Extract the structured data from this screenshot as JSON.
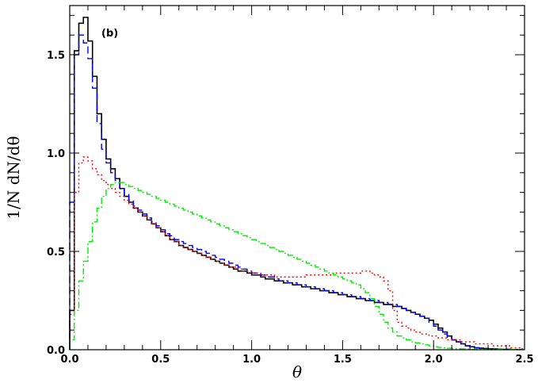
{
  "chart_data": {
    "type": "line",
    "title": "",
    "panel_label": "(b)",
    "xlabel": "θ",
    "ylabel": "1/N dN/dθ",
    "xlim": [
      0,
      2.5
    ],
    "ylim": [
      0,
      1.75
    ],
    "x_ticks": [
      "0.0",
      "0.5",
      "1.0",
      "1.5",
      "2.0",
      "2.5"
    ],
    "y_ticks": [
      "0.0",
      "0.5",
      "1.0",
      "1.5"
    ],
    "grid": false,
    "legend": "none",
    "step": 0.025,
    "series": [
      {
        "color": "#000000",
        "style": "solid",
        "values": [
          0.2,
          1.52,
          1.66,
          1.69,
          1.57,
          1.39,
          1.2,
          1.07,
          0.97,
          0.92,
          0.87,
          0.82,
          0.78,
          0.75,
          0.72,
          0.7,
          0.68,
          0.66,
          0.64,
          0.62,
          0.6,
          0.58,
          0.56,
          0.55,
          0.53,
          0.52,
          0.51,
          0.5,
          0.49,
          0.48,
          0.47,
          0.46,
          0.45,
          0.44,
          0.43,
          0.42,
          0.41,
          0.4,
          0.4,
          0.39,
          0.38,
          0.38,
          0.37,
          0.36,
          0.36,
          0.35,
          0.35,
          0.34,
          0.34,
          0.33,
          0.33,
          0.32,
          0.32,
          0.31,
          0.31,
          0.3,
          0.3,
          0.29,
          0.29,
          0.28,
          0.28,
          0.27,
          0.27,
          0.26,
          0.26,
          0.25,
          0.25,
          0.24,
          0.24,
          0.23,
          0.23,
          0.22,
          0.22,
          0.21,
          0.2,
          0.19,
          0.18,
          0.17,
          0.16,
          0.15,
          0.13,
          0.11,
          0.09,
          0.07,
          0.05,
          0.04,
          0.03,
          0.02,
          0.015,
          0.01,
          0.008,
          0.006,
          0.005,
          0.004,
          0.003,
          0.002,
          0.002,
          0.001,
          0.001,
          0.001
        ]
      },
      {
        "color": "#0000ff",
        "style": "dashed",
        "values": [
          0.75,
          1.5,
          1.6,
          1.56,
          1.48,
          1.33,
          1.15,
          1.02,
          0.95,
          0.9,
          0.86,
          0.82,
          0.79,
          0.76,
          0.73,
          0.71,
          0.69,
          0.67,
          0.65,
          0.63,
          0.61,
          0.59,
          0.58,
          0.56,
          0.55,
          0.54,
          0.53,
          0.52,
          0.51,
          0.5,
          0.49,
          0.48,
          0.47,
          0.46,
          0.45,
          0.44,
          0.43,
          0.42,
          0.41,
          0.4,
          0.39,
          0.39,
          0.38,
          0.37,
          0.37,
          0.36,
          0.35,
          0.35,
          0.34,
          0.34,
          0.33,
          0.33,
          0.32,
          0.32,
          0.31,
          0.31,
          0.3,
          0.3,
          0.29,
          0.29,
          0.28,
          0.28,
          0.27,
          0.27,
          0.26,
          0.26,
          0.25,
          0.25,
          0.24,
          0.24,
          0.23,
          0.23,
          0.22,
          0.21,
          0.2,
          0.19,
          0.18,
          0.17,
          0.16,
          0.14,
          0.12,
          0.1,
          0.08,
          0.06,
          0.05,
          0.04,
          0.03,
          0.02,
          0.015,
          0.01,
          0.008,
          0.006,
          0.005,
          0.004,
          0.003,
          0.002,
          0.002,
          0.001,
          0.001,
          0.001
        ]
      },
      {
        "color": "#ff0000",
        "style": "dotted",
        "values": [
          0.18,
          0.8,
          0.95,
          0.98,
          0.96,
          0.92,
          0.89,
          0.86,
          0.84,
          0.82,
          0.8,
          0.78,
          0.76,
          0.74,
          0.72,
          0.7,
          0.68,
          0.66,
          0.64,
          0.62,
          0.6,
          0.58,
          0.56,
          0.55,
          0.53,
          0.52,
          0.51,
          0.5,
          0.49,
          0.48,
          0.47,
          0.46,
          0.45,
          0.44,
          0.43,
          0.42,
          0.42,
          0.41,
          0.4,
          0.4,
          0.39,
          0.39,
          0.38,
          0.38,
          0.38,
          0.37,
          0.37,
          0.37,
          0.37,
          0.37,
          0.37,
          0.37,
          0.38,
          0.38,
          0.38,
          0.38,
          0.38,
          0.38,
          0.39,
          0.39,
          0.39,
          0.39,
          0.39,
          0.39,
          0.4,
          0.4,
          0.39,
          0.38,
          0.37,
          0.35,
          0.3,
          0.2,
          0.14,
          0.12,
          0.11,
          0.1,
          0.09,
          0.08,
          0.08,
          0.07,
          0.07,
          0.06,
          0.06,
          0.05,
          0.05,
          0.05,
          0.04,
          0.04,
          0.04,
          0.03,
          0.03,
          0.03,
          0.03,
          0.02,
          0.02,
          0.02,
          0.02,
          0.01,
          0.01,
          0.005
        ]
      },
      {
        "color": "#00ee00",
        "style": "dashdot",
        "values": [
          0.05,
          0.2,
          0.35,
          0.45,
          0.55,
          0.65,
          0.72,
          0.78,
          0.82,
          0.84,
          0.85,
          0.85,
          0.84,
          0.83,
          0.82,
          0.81,
          0.8,
          0.79,
          0.78,
          0.77,
          0.76,
          0.75,
          0.74,
          0.73,
          0.72,
          0.71,
          0.7,
          0.69,
          0.68,
          0.67,
          0.66,
          0.65,
          0.64,
          0.63,
          0.62,
          0.61,
          0.6,
          0.59,
          0.58,
          0.57,
          0.56,
          0.55,
          0.54,
          0.53,
          0.52,
          0.51,
          0.5,
          0.49,
          0.48,
          0.47,
          0.46,
          0.45,
          0.44,
          0.43,
          0.42,
          0.41,
          0.4,
          0.39,
          0.38,
          0.37,
          0.36,
          0.35,
          0.34,
          0.33,
          0.31,
          0.29,
          0.26,
          0.22,
          0.18,
          0.14,
          0.11,
          0.09,
          0.07,
          0.06,
          0.05,
          0.04,
          0.035,
          0.03,
          0.025,
          0.02,
          0.015,
          0.012,
          0.01,
          0.008,
          0.006,
          0.005,
          0.004,
          0.003,
          0.002,
          0.002,
          0.001,
          0.001,
          0.001,
          0.001,
          0.001,
          0.001,
          0.001,
          0.001,
          0.001,
          0.001
        ]
      }
    ]
  }
}
